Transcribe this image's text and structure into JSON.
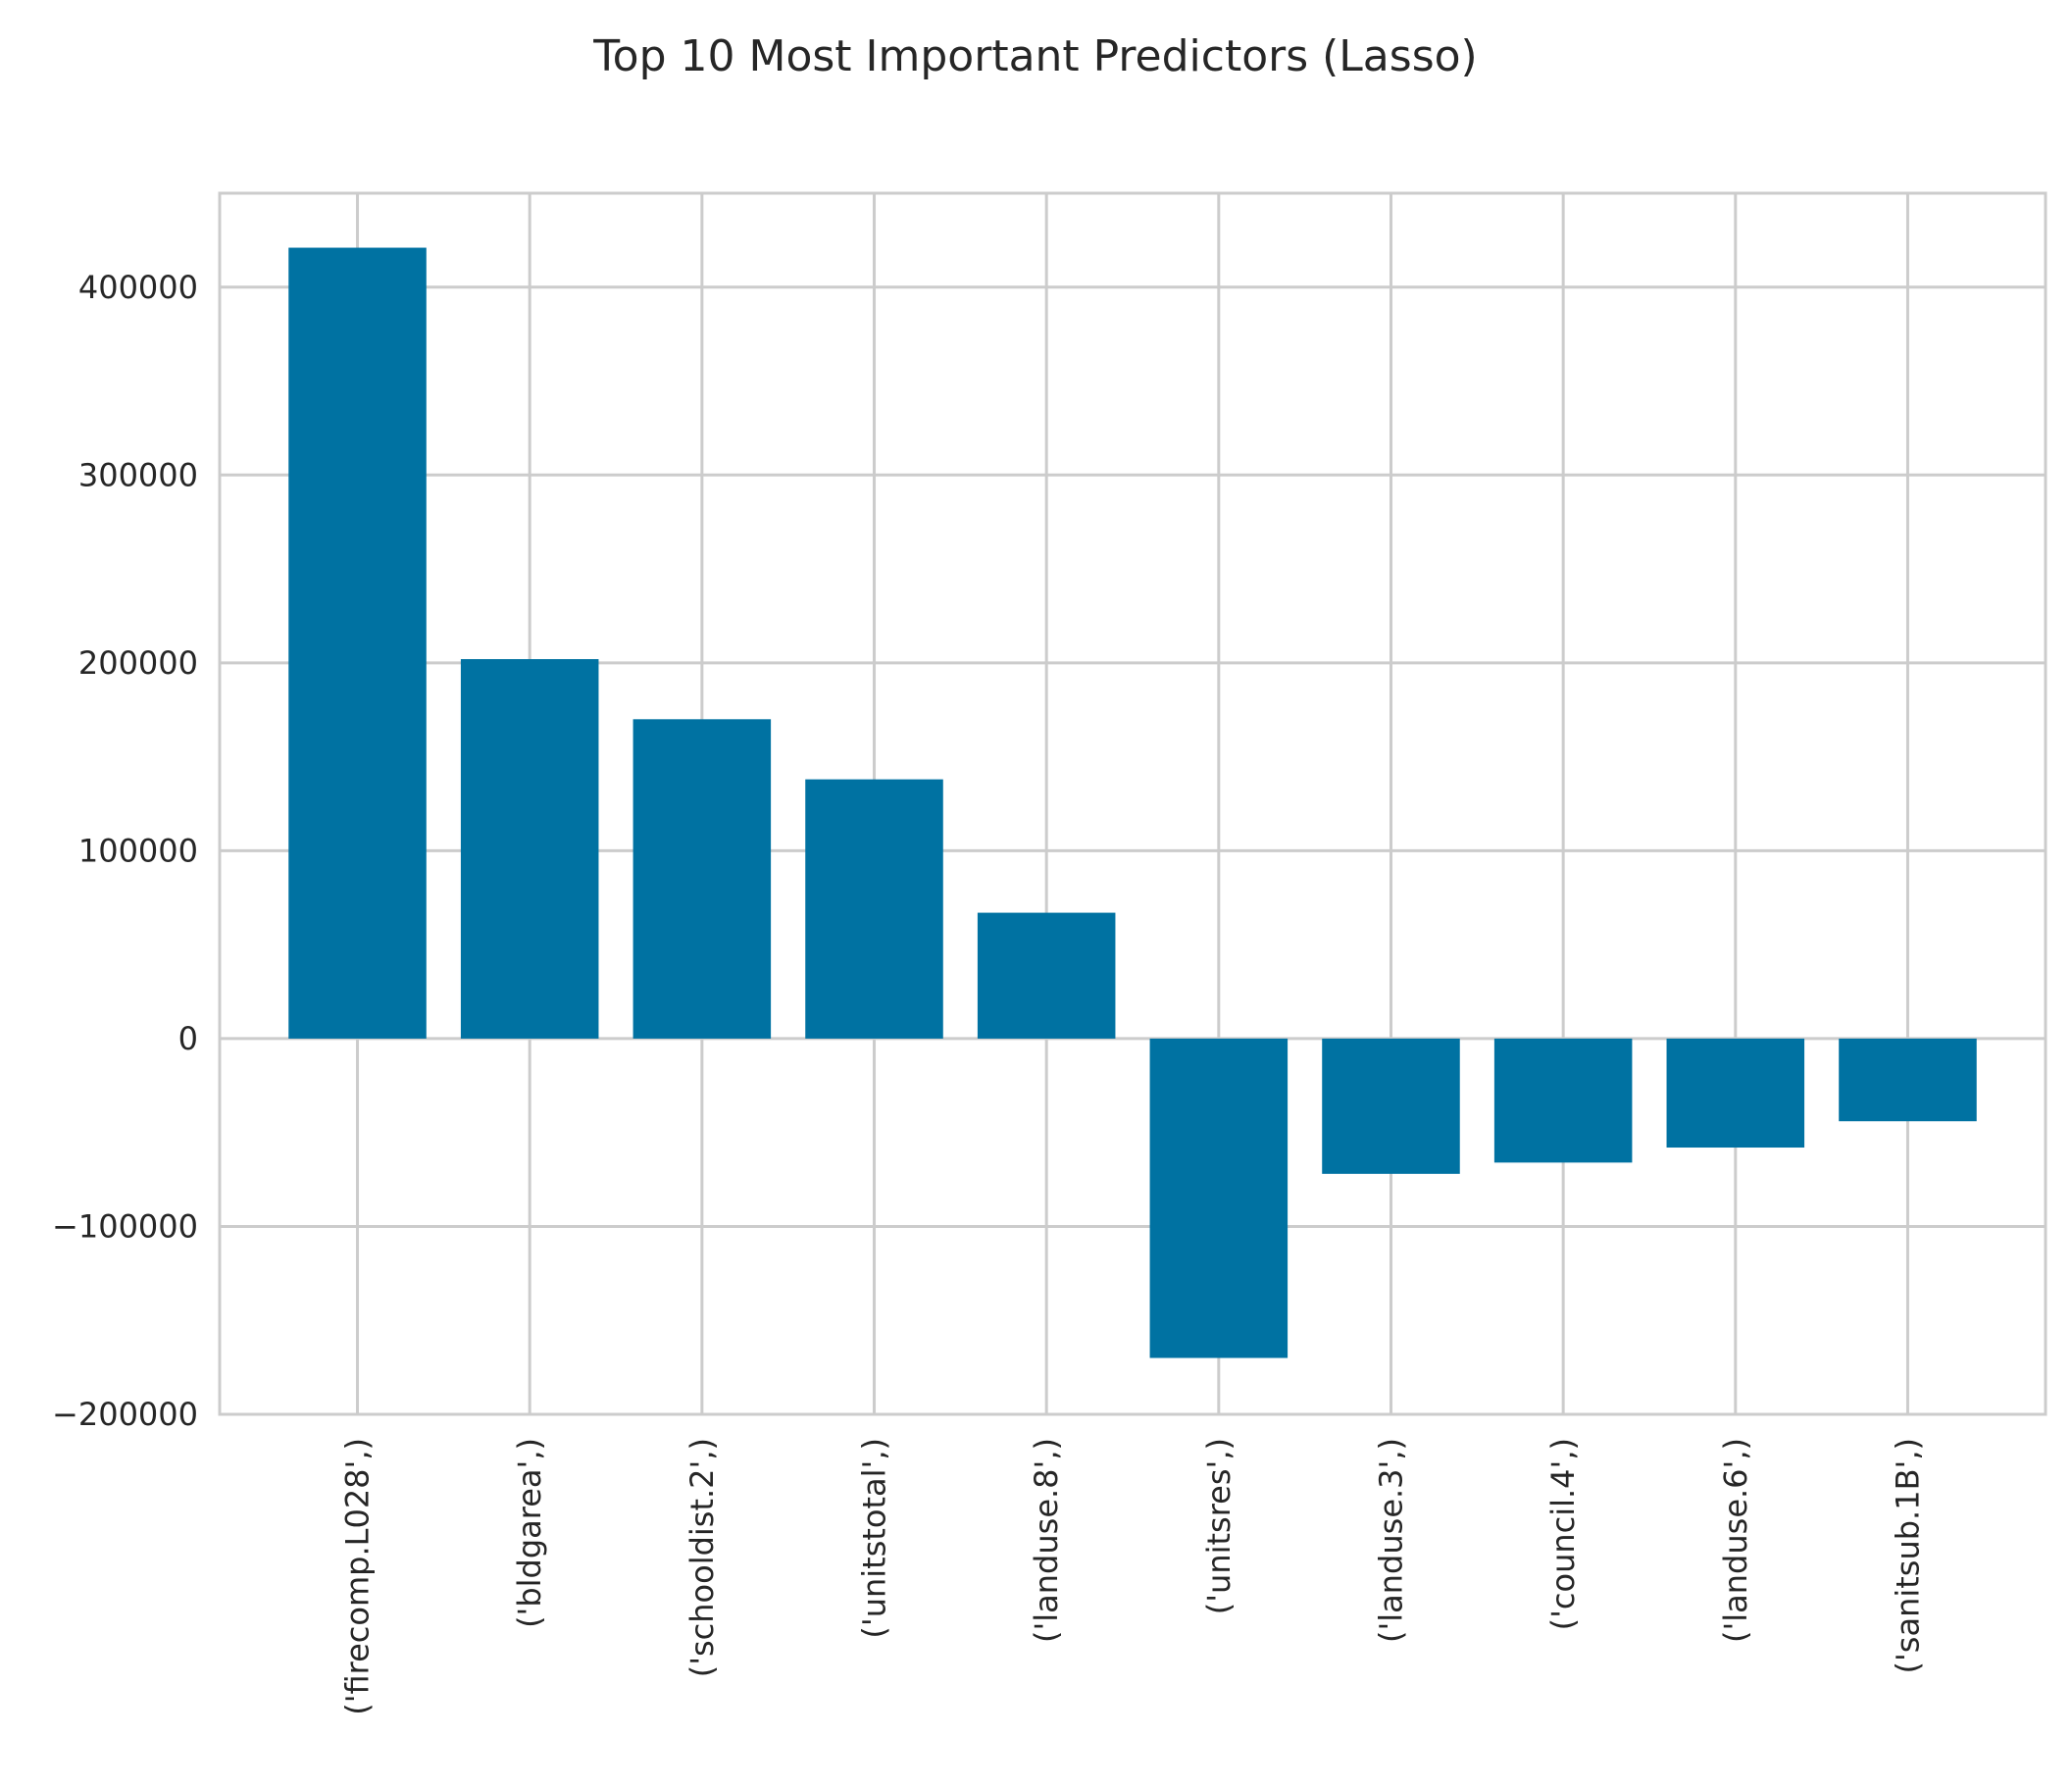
{
  "chart_data": {
    "type": "bar",
    "title": "Top 10 Most Important Predictors (Lasso)",
    "xlabel": "",
    "ylabel": "",
    "categories": [
      "('firecomp.L028',)",
      "('bldgarea',)",
      "('schooldist.2',)",
      "('unitstotal',)",
      "('landuse.8',)",
      "('unitsres',)",
      "('landuse.3',)",
      "('council.4',)",
      "('landuse.6',)",
      "('sanitsub.1B',)"
    ],
    "values": [
      421000,
      202000,
      170000,
      138000,
      67000,
      -170000,
      -72000,
      -66000,
      -58000,
      -44000
    ],
    "ylim": [
      -200000,
      450000
    ],
    "yticks": [
      {
        "value": -200000,
        "label": "−200000"
      },
      {
        "value": -100000,
        "label": "−100000"
      },
      {
        "value": 0,
        "label": "0"
      },
      {
        "value": 100000,
        "label": "100000"
      },
      {
        "value": 200000,
        "label": "200000"
      },
      {
        "value": 300000,
        "label": "300000"
      },
      {
        "value": 400000,
        "label": "400000"
      }
    ],
    "grid": true,
    "legend": "none",
    "colors": {
      "bar": "#0072a2",
      "grid": "#cccccc",
      "spine": "#cccccc",
      "text": "#262626"
    }
  }
}
